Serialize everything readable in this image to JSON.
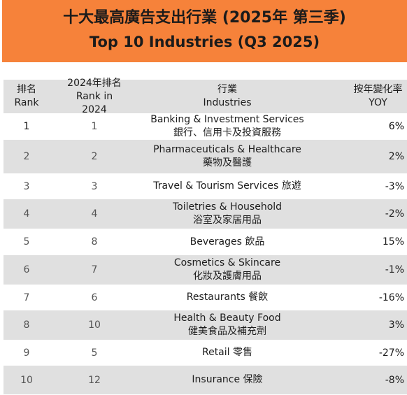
{
  "title": {
    "zh": "十大最高廣告支出行業 (2025年 第三季)",
    "en": "Top 10 Industries (Q3 2025)"
  },
  "colors": {
    "banner": "#f6823a",
    "row_shade": "#e0e0e0"
  },
  "headers": {
    "rank_zh": "排名",
    "rank_en": "Rank",
    "prev_zh": "2024年排名",
    "prev_en": "Rank in 2024",
    "industry_zh": "行業",
    "industry_en": "Industries",
    "yoy_zh": "按年變化率",
    "yoy_en": "YOY"
  },
  "rows": [
    {
      "rank": "1",
      "prev": "1",
      "line1": "Banking & Investment Services",
      "line2": "銀行、信用卡及投資服務",
      "yoy": "6%"
    },
    {
      "rank": "2",
      "prev": "2",
      "line1": "Pharmaceuticals & Healthcare",
      "line2": "藥物及醫護",
      "yoy": "2%"
    },
    {
      "rank": "3",
      "prev": "3",
      "line1": "Travel & Tourism Services 旅遊",
      "line2": "",
      "yoy": "-3%"
    },
    {
      "rank": "4",
      "prev": "4",
      "line1": "Toiletries & Household",
      "line2": "浴室及家居用品",
      "yoy": "-2%"
    },
    {
      "rank": "5",
      "prev": "8",
      "line1": "Beverages 飲品",
      "line2": "",
      "yoy": "15%"
    },
    {
      "rank": "6",
      "prev": "7",
      "line1": "Cosmetics & Skincare",
      "line2": "化妝及護膚用品",
      "yoy": "-1%"
    },
    {
      "rank": "7",
      "prev": "6",
      "line1": "Restaurants 餐飲",
      "line2": "",
      "yoy": "-16%"
    },
    {
      "rank": "8",
      "prev": "10",
      "line1": "Health & Beauty Food",
      "line2": "健美食品及補充劑",
      "yoy": "3%"
    },
    {
      "rank": "9",
      "prev": "5",
      "line1": "Retail 零售",
      "line2": "",
      "yoy": "-27%"
    },
    {
      "rank": "10",
      "prev": "12",
      "line1": "Insurance 保險",
      "line2": "",
      "yoy": "-8%"
    }
  ]
}
